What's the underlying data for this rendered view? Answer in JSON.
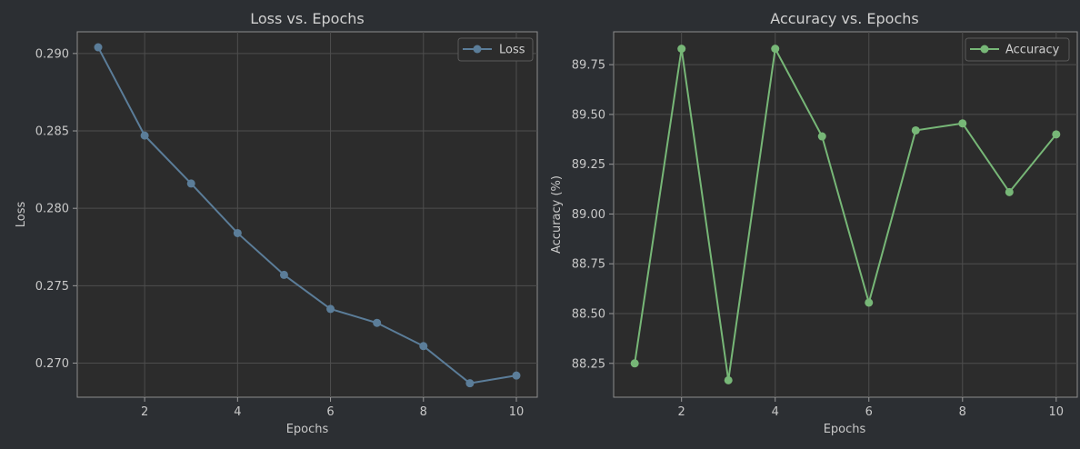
{
  "background_color": "#2c2f33",
  "chart_data": [
    {
      "type": "line",
      "title": "Loss vs. Epochs",
      "xlabel": "Epochs",
      "ylabel": "Loss",
      "x": [
        1,
        2,
        3,
        4,
        5,
        6,
        7,
        8,
        9,
        10
      ],
      "xlim": [
        0.55,
        10.45
      ],
      "ylim": [
        0.2678,
        0.2914
      ],
      "xticks": [
        2,
        4,
        6,
        8,
        10
      ],
      "xtick_labels": [
        "2",
        "4",
        "6",
        "8",
        "10"
      ],
      "yticks": [
        0.27,
        0.275,
        0.28,
        0.285,
        0.29
      ],
      "ytick_labels": [
        "0.270",
        "0.275",
        "0.280",
        "0.285",
        "0.290"
      ],
      "grid": true,
      "legend_position": "top-right",
      "series": [
        {
          "name": "Loss",
          "color": "#5b7d99",
          "marker": "circle",
          "values": [
            0.2904,
            0.2847,
            0.2816,
            0.2784,
            0.2757,
            0.2735,
            0.2726,
            0.2711,
            0.2687,
            0.2692
          ]
        }
      ]
    },
    {
      "type": "line",
      "title": "Accuracy vs. Epochs",
      "xlabel": "Epochs",
      "ylabel": "Accuracy (%)",
      "x": [
        1,
        2,
        3,
        4,
        5,
        6,
        7,
        8,
        9,
        10
      ],
      "xlim": [
        0.55,
        10.45
      ],
      "ylim": [
        88.08,
        89.915
      ],
      "xticks": [
        2,
        4,
        6,
        8,
        10
      ],
      "xtick_labels": [
        "2",
        "4",
        "6",
        "8",
        "10"
      ],
      "yticks": [
        88.25,
        88.5,
        88.75,
        89.0,
        89.25,
        89.5,
        89.75
      ],
      "ytick_labels": [
        "88.25",
        "88.50",
        "88.75",
        "89.00",
        "89.25",
        "89.50",
        "89.75"
      ],
      "grid": true,
      "legend_position": "top-right",
      "series": [
        {
          "name": "Accuracy",
          "color": "#77b777",
          "marker": "circle",
          "values": [
            88.25,
            89.83,
            88.165,
            89.83,
            89.39,
            88.555,
            89.42,
            89.455,
            89.11,
            89.4
          ]
        }
      ]
    }
  ]
}
